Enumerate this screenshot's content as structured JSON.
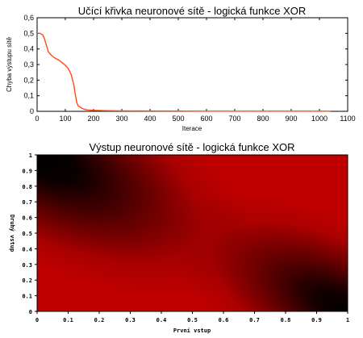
{
  "chart_data": [
    {
      "type": "line",
      "title": "Učící křivka neuronové sítě - logická funkce XOR",
      "xlabel": "Iterace",
      "ylabel": "Chyba výstupu sítě",
      "xlim": [
        0,
        1100
      ],
      "ylim": [
        0,
        0.6
      ],
      "xticks": [
        "0",
        "100",
        "200",
        "300",
        "400",
        "500",
        "600",
        "700",
        "800",
        "900",
        "1000",
        "1100"
      ],
      "yticks": [
        "0",
        "0,1",
        "0,2",
        "0,3",
        "0,4",
        "0,5",
        "0,6"
      ],
      "grid": false,
      "line_color": "#ff4a14",
      "series": [
        {
          "x": [
            0,
            10,
            20,
            25,
            30,
            35,
            40,
            50,
            60,
            70,
            80,
            90,
            100,
            110,
            120,
            130,
            135,
            140,
            145,
            150,
            160,
            170,
            180,
            200,
            250,
            300,
            400,
            600,
            800,
            1000,
            1040
          ],
          "values": [
            0.5,
            0.5,
            0.49,
            0.47,
            0.44,
            0.41,
            0.38,
            0.36,
            0.345,
            0.335,
            0.325,
            0.31,
            0.295,
            0.275,
            0.24,
            0.17,
            0.11,
            0.06,
            0.035,
            0.03,
            0.018,
            0.012,
            0.009,
            0.006,
            0.004,
            0.003,
            0.002,
            0.001,
            0.001,
            0.001,
            0.001
          ]
        }
      ]
    },
    {
      "type": "heatmap",
      "title": "Výstup neuronové sítě - logická funkce XOR",
      "xlabel": "První vstup",
      "ylabel": "Druhý vstup",
      "xlim": [
        0,
        1
      ],
      "ylim": [
        0,
        1
      ],
      "xticks": [
        "0",
        "0.1",
        "0.2",
        "0.3",
        "0.4",
        "0.5",
        "0.6",
        "0.7",
        "0.8",
        "0.9",
        "1"
      ],
      "yticks": [
        "0",
        "0.1",
        "0.2",
        "0.3",
        "0.4",
        "0.5",
        "0.6",
        "0.7",
        "0.8",
        "0.9",
        "1"
      ],
      "colormap": {
        "low": "#000000",
        "high": "#c00000"
      },
      "dark_corners": [
        "top-left",
        "bottom-right"
      ]
    }
  ]
}
